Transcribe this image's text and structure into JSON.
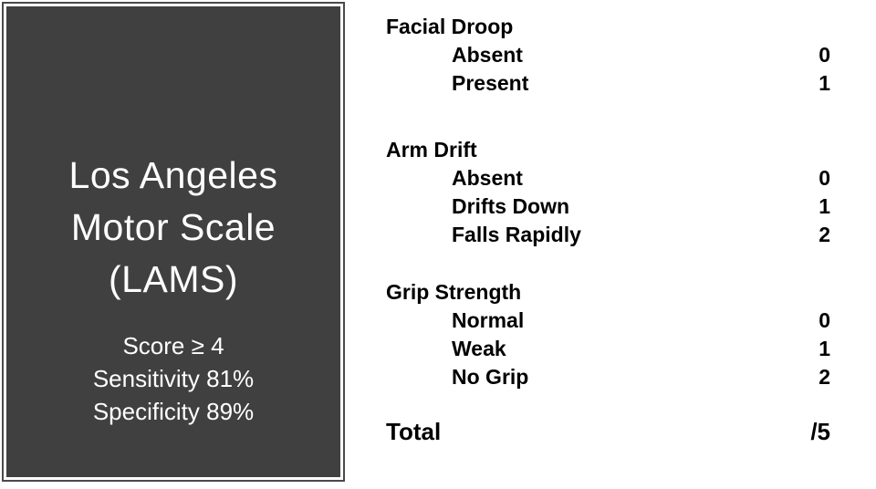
{
  "panel": {
    "title": "Los Angeles Motor Scale (LAMS)",
    "stats": [
      "Score ≥ 4",
      "Sensitivity 81%",
      "Specificity 89%"
    ],
    "bg_color": "#404040",
    "border_inner_color": "#ffffff",
    "text_color": "#ffffff"
  },
  "scoring": {
    "groups": [
      {
        "title": "Facial Droop",
        "items": [
          {
            "label": "Absent",
            "value": "0"
          },
          {
            "label": "Present",
            "value": "1"
          }
        ]
      },
      {
        "title": "Arm Drift",
        "items": [
          {
            "label": "Absent",
            "value": "0"
          },
          {
            "label": "Drifts Down",
            "value": "1"
          },
          {
            "label": "Falls Rapidly",
            "value": "2"
          }
        ]
      },
      {
        "title": "Grip Strength",
        "items": [
          {
            "label": "Normal",
            "value": "0"
          },
          {
            "label": "Weak",
            "value": "1"
          },
          {
            "label": "No Grip",
            "value": "2"
          }
        ]
      }
    ],
    "total": {
      "label": "Total",
      "value": "/5"
    },
    "text_color": "#000000"
  }
}
